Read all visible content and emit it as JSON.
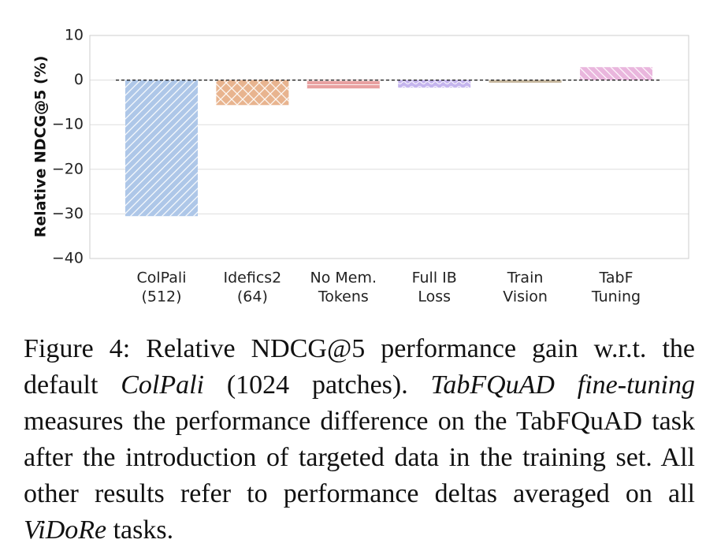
{
  "chart_data": {
    "type": "bar",
    "title": "",
    "xlabel": "",
    "ylabel": "Relative NDCG@5 (%)",
    "ylim": [
      -40,
      10
    ],
    "yticks": [
      10,
      0,
      -10,
      -20,
      -30,
      -40
    ],
    "ytick_labels": [
      "10",
      "0",
      "−10",
      "−20",
      "−30",
      "−40"
    ],
    "grid": true,
    "baseline": 0,
    "categories": [
      [
        "ColPali",
        "(512)"
      ],
      [
        "Idefics2",
        "(64)"
      ],
      [
        "No Mem.",
        "Tokens"
      ],
      [
        "Full IB",
        "Loss"
      ],
      [
        "Train",
        "Vision"
      ],
      [
        "TabF",
        "Tuning"
      ]
    ],
    "values": [
      -30.5,
      -5.6,
      -2.0,
      -1.7,
      -0.6,
      2.9
    ],
    "colors": [
      "#aec7e8",
      "#e8b48f",
      "#e8a0a0",
      "#c5b5ee",
      "#c8b9a0",
      "#e9b6dd"
    ],
    "hatches": [
      "diagonal",
      "cross",
      "horizontal",
      "wave",
      "none",
      "diagonal-back"
    ]
  },
  "caption": {
    "lead": "Figure 4: Relative NDCG@5 performance gain w.r.t. the default ",
    "em1": "ColPali",
    "mid1": " (1024 patches). ",
    "em2": "TabFQuAD fine-tuning",
    "mid2": " measures the performance difference on the TabFQuAD task after the introduction of targeted data in the training set. All other results refer to performance deltas averaged on all ",
    "em3": "ViDoRe",
    "tail": " tasks."
  }
}
